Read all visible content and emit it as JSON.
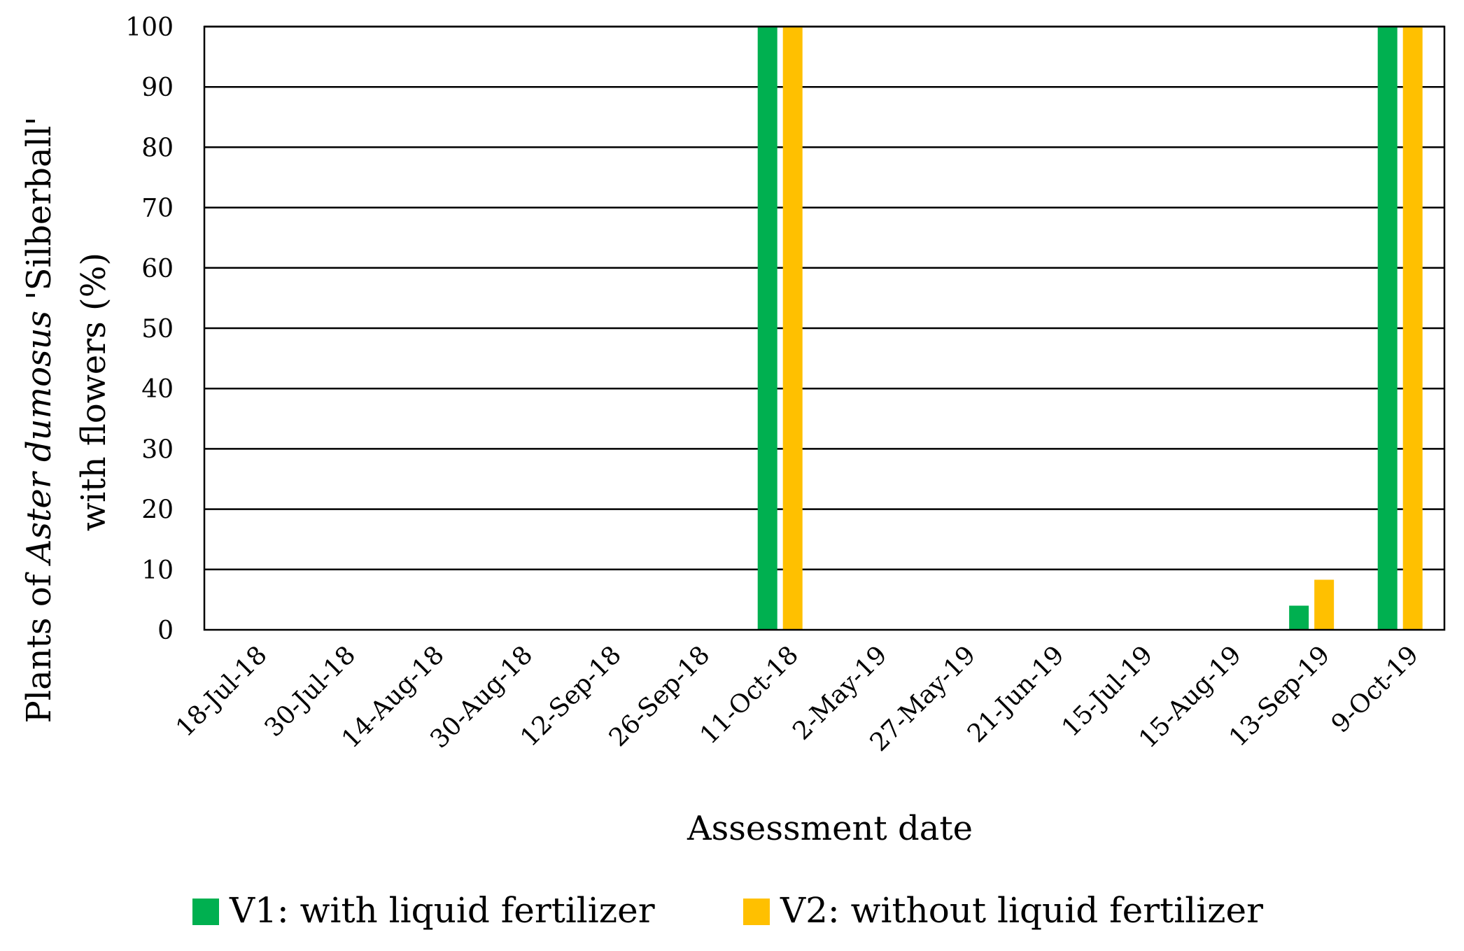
{
  "chart_data": {
    "type": "bar",
    "title": "",
    "xlabel": "Assessment date",
    "ylabel": {
      "prefix": "Plants of ",
      "italic": "Aster dumosus",
      "suffix": " 'Silberball'",
      "line2": "with flowers (%)"
    },
    "ylim": [
      0,
      100
    ],
    "yticks": [
      0,
      10,
      20,
      30,
      40,
      50,
      60,
      70,
      80,
      90,
      100
    ],
    "grid": true,
    "legend_position": "bottom",
    "categories": [
      "18-Jul-18",
      "30-Jul-18",
      "14-Aug-18",
      "30-Aug-18",
      "12-Sep-18",
      "26-Sep-18",
      "11-Oct-18",
      "2-May-19",
      "27-May-19",
      "21-Jun-19",
      "15-Jul-19",
      "15-Aug-19",
      "13-Sep-19",
      "9-Oct-19"
    ],
    "series": [
      {
        "name": "V1: with liquid fertilizer",
        "color": "#00b050",
        "values": [
          0,
          0,
          0,
          0,
          0,
          0,
          100,
          0,
          0,
          0,
          0,
          0,
          4,
          100
        ]
      },
      {
        "name": "V2: without liquid fertilizer",
        "color": "#ffc000",
        "values": [
          0,
          0,
          0,
          0,
          0,
          0,
          100,
          0,
          0,
          0,
          0,
          0,
          8.3,
          100
        ]
      }
    ]
  }
}
